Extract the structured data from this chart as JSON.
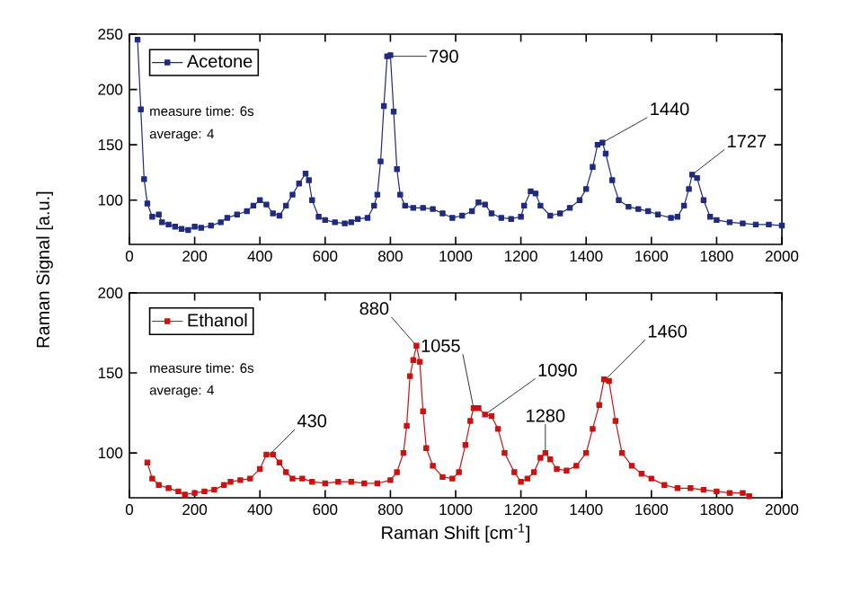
{
  "chart_data": [
    {
      "type": "line",
      "ylabel": "Raman Signal [a.u.]",
      "xlim": [
        0,
        2000
      ],
      "ylim": [
        60,
        250
      ],
      "xticks": [
        0,
        200,
        400,
        600,
        800,
        1000,
        1200,
        1400,
        1600,
        1800,
        2000
      ],
      "yticks": [
        100,
        150,
        200,
        250
      ],
      "legend": "top left",
      "marker": "square",
      "line_style": "solid",
      "series": [
        {
          "name": "Acetone",
          "color": "#1f2a80",
          "x": [
            25,
            35,
            45,
            55,
            70,
            90,
            100,
            120,
            140,
            160,
            180,
            200,
            220,
            250,
            280,
            300,
            330,
            360,
            380,
            400,
            420,
            440,
            460,
            480,
            500,
            520,
            540,
            550,
            560,
            580,
            600,
            630,
            660,
            680,
            700,
            730,
            750,
            760,
            770,
            780,
            790,
            800,
            810,
            820,
            830,
            845,
            870,
            900,
            930,
            960,
            990,
            1020,
            1050,
            1070,
            1090,
            1110,
            1140,
            1170,
            1200,
            1210,
            1230,
            1245,
            1260,
            1290,
            1320,
            1350,
            1380,
            1400,
            1420,
            1435,
            1450,
            1460,
            1480,
            1500,
            1530,
            1560,
            1590,
            1620,
            1660,
            1680,
            1700,
            1715,
            1725,
            1740,
            1760,
            1780,
            1800,
            1840,
            1880,
            1920,
            1960,
            2000
          ],
          "values": [
            245,
            182,
            119,
            97,
            85,
            87,
            80,
            78,
            76,
            74,
            73,
            76,
            75,
            77,
            80,
            84,
            87,
            90,
            95,
            100,
            96,
            88,
            86,
            95,
            105,
            115,
            124,
            118,
            100,
            85,
            82,
            80,
            79,
            80,
            83,
            84,
            95,
            105,
            135,
            185,
            230,
            231,
            180,
            128,
            105,
            95,
            93,
            93,
            92,
            88,
            84,
            86,
            90,
            98,
            96,
            88,
            84,
            83,
            85,
            95,
            108,
            106,
            95,
            86,
            88,
            93,
            100,
            110,
            130,
            150,
            152,
            142,
            118,
            100,
            94,
            92,
            90,
            87,
            84,
            85,
            95,
            110,
            123,
            120,
            100,
            85,
            82,
            80,
            79,
            78,
            78,
            77
          ]
        }
      ],
      "annotations": [
        "measure time: 6s",
        "average: 4",
        {
          "text": "790",
          "x": 790,
          "y": 230
        },
        {
          "text": "1440",
          "x": 1450,
          "y": 152
        },
        {
          "text": "1727",
          "x": 1725,
          "y": 123
        }
      ]
    },
    {
      "type": "line",
      "xlabel": "Raman Shift [cm$^{-1}$]",
      "xlim": [
        0,
        2000
      ],
      "ylim": [
        72,
        200
      ],
      "xticks": [
        0,
        200,
        400,
        600,
        800,
        1000,
        1200,
        1400,
        1600,
        1800,
        2000
      ],
      "yticks": [
        100,
        150,
        200
      ],
      "legend": "top left",
      "marker": "square",
      "line_style": "solid",
      "series": [
        {
          "name": "Ethanol",
          "color": "#cc1111",
          "x": [
            55,
            70,
            90,
            120,
            150,
            170,
            200,
            230,
            260,
            290,
            310,
            340,
            370,
            400,
            420,
            440,
            460,
            480,
            500,
            530,
            560,
            600,
            640,
            680,
            720,
            760,
            800,
            820,
            840,
            850,
            860,
            870,
            880,
            890,
            900,
            910,
            930,
            960,
            990,
            1010,
            1030,
            1045,
            1055,
            1070,
            1090,
            1110,
            1130,
            1150,
            1180,
            1200,
            1220,
            1240,
            1260,
            1275,
            1290,
            1310,
            1340,
            1370,
            1400,
            1420,
            1440,
            1455,
            1470,
            1490,
            1510,
            1540,
            1570,
            1600,
            1640,
            1680,
            1720,
            1760,
            1800,
            1840,
            1880,
            1900
          ],
          "values": [
            94,
            84,
            80,
            78,
            76,
            74,
            75,
            76,
            77,
            80,
            82,
            83,
            84,
            90,
            99,
            99,
            94,
            88,
            84,
            84,
            82,
            81,
            82,
            82,
            81,
            81,
            83,
            88,
            100,
            117,
            148,
            158,
            167,
            157,
            126,
            103,
            92,
            85,
            84,
            88,
            105,
            120,
            128,
            128,
            124,
            123,
            115,
            100,
            88,
            82,
            84,
            88,
            97,
            100,
            96,
            90,
            89,
            92,
            100,
            115,
            130,
            146,
            145,
            120,
            100,
            92,
            87,
            84,
            80,
            78,
            78,
            77,
            76,
            75,
            75,
            73
          ]
        }
      ],
      "annotations": [
        "measure time: 6s",
        "average: 4",
        {
          "text": "430",
          "x": 430,
          "y": 99
        },
        {
          "text": "880",
          "x": 880,
          "y": 167
        },
        {
          "text": "1055",
          "x": 1055,
          "y": 128
        },
        {
          "text": "1090",
          "x": 1090,
          "y": 124
        },
        {
          "text": "1280",
          "x": 1275,
          "y": 100
        },
        {
          "text": "1460",
          "x": 1460,
          "y": 146
        }
      ]
    }
  ]
}
